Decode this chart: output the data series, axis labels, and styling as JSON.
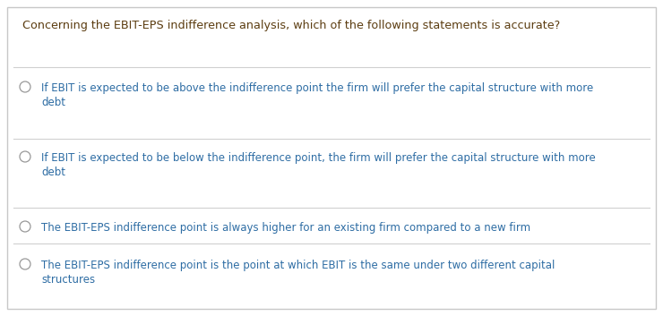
{
  "background_color": "#ffffff",
  "border_color": "#c8c8c8",
  "question": "Concerning the EBIT-EPS indifference analysis, which of the following statements is accurate?",
  "question_color": "#5c3d11",
  "question_fontsize": 9.2,
  "options": [
    {
      "line1": "If EBIT is expected to be above the indifference point the firm will prefer the capital structure with more",
      "line2": "debt",
      "color": "#2e6da4"
    },
    {
      "line1": "If EBIT is expected to be below the indifference point, the firm will prefer the capital structure with more",
      "line2": "debt",
      "color": "#2e6da4"
    },
    {
      "line1": "The EBIT-EPS indifference point is always higher for an existing firm compared to a new firm",
      "line2": "",
      "color": "#2e6da4"
    },
    {
      "line1": "The EBIT-EPS indifference point is the point at which EBIT is the same under two different capital",
      "line2": "structures",
      "color": "#2e6da4"
    }
  ],
  "option_fontsize": 8.5,
  "circle_color": "#999999",
  "line_color": "#d0d0d0",
  "line_width": 0.8,
  "fig_width": 7.4,
  "fig_height": 3.53,
  "dpi": 100
}
